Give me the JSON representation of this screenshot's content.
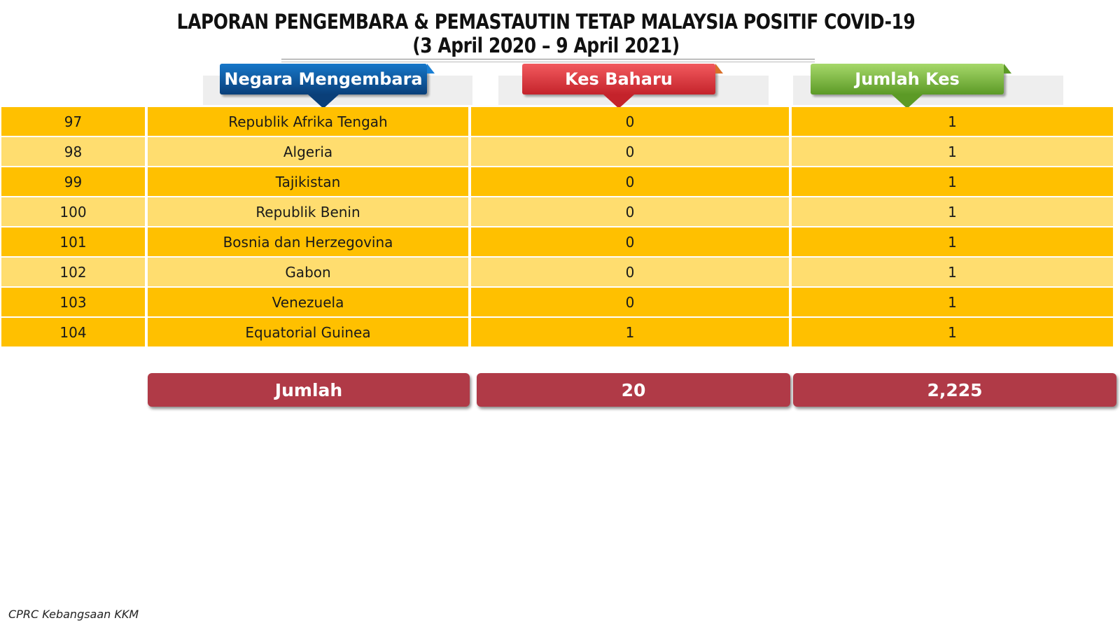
{
  "title": {
    "line1": "LAPORAN PENGEMBARA & PEMASTAUTIN TETAP MALAYSIA POSITIF COVID-19",
    "line2": "(3 April 2020 – 9 April  2021)"
  },
  "headers": {
    "country": "Negara Mengembara",
    "new_cases": "Kes Baharu",
    "total_cases": "Jumlah Kes"
  },
  "rows": [
    {
      "no": "97",
      "country": "Republik Afrika Tengah",
      "new": "0",
      "total": "1"
    },
    {
      "no": "98",
      "country": "Algeria",
      "new": "0",
      "total": "1"
    },
    {
      "no": "99",
      "country": "Tajikistan",
      "new": "0",
      "total": "1"
    },
    {
      "no": "100",
      "country": "Republik Benin",
      "new": "0",
      "total": "1"
    },
    {
      "no": "101",
      "country": "Bosnia dan Herzegovina",
      "new": "0",
      "total": "1"
    },
    {
      "no": "102",
      "country": "Gabon",
      "new": "0",
      "total": "1"
    },
    {
      "no": "103",
      "country": "Venezuela",
      "new": "0",
      "total": "1"
    },
    {
      "no": "104",
      "country": "Equatorial Guinea",
      "new": "1",
      "total": "1"
    }
  ],
  "totals": {
    "label": "Jumlah",
    "new_cases": "20",
    "total_cases": "2,225"
  },
  "footer": "CPRC Kebangsaan KKM",
  "colors": {
    "row_dark": "#ffc000",
    "row_light": "#ffdd6f",
    "totals_bg": "#b03a47",
    "header_country": "#0a3f79",
    "header_new": "#c4232b",
    "header_total": "#5c9a26"
  }
}
